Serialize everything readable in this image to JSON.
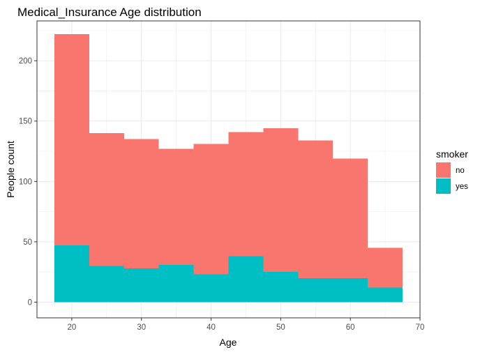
{
  "chart_data": {
    "type": "bar",
    "stacking": "stacked",
    "title": "Medical_Insurance Age distribution",
    "xlabel": "Age",
    "ylabel": "People count",
    "bins": [
      {
        "x0": 17.5,
        "x1": 22.5
      },
      {
        "x0": 22.5,
        "x1": 27.5
      },
      {
        "x0": 27.5,
        "x1": 32.5
      },
      {
        "x0": 32.5,
        "x1": 37.5
      },
      {
        "x0": 37.5,
        "x1": 42.5
      },
      {
        "x0": 42.5,
        "x1": 47.5
      },
      {
        "x0": 47.5,
        "x1": 52.5
      },
      {
        "x0": 52.5,
        "x1": 57.5
      },
      {
        "x0": 57.5,
        "x1": 62.5
      },
      {
        "x0": 62.5,
        "x1": 67.5
      }
    ],
    "series": [
      {
        "name": "yes",
        "color": "#00BFC4",
        "values": [
          47,
          30,
          28,
          31,
          23,
          38,
          25,
          20,
          20,
          12
        ]
      },
      {
        "name": "no",
        "color": "#F8766D",
        "values": [
          175,
          110,
          107,
          96,
          108,
          103,
          119,
          114,
          99,
          33
        ]
      }
    ],
    "xlim": [
      15,
      70
    ],
    "ylim": [
      -13,
      233
    ],
    "xticks": [
      20,
      30,
      40,
      50,
      60,
      70
    ],
    "yticks": [
      0,
      50,
      100,
      150,
      200
    ],
    "grid": true,
    "legend": {
      "title": "smoker",
      "placement": "right",
      "entries": [
        {
          "label": "no",
          "color": "#F8766D"
        },
        {
          "label": "yes",
          "color": "#00BFC4"
        }
      ]
    }
  }
}
